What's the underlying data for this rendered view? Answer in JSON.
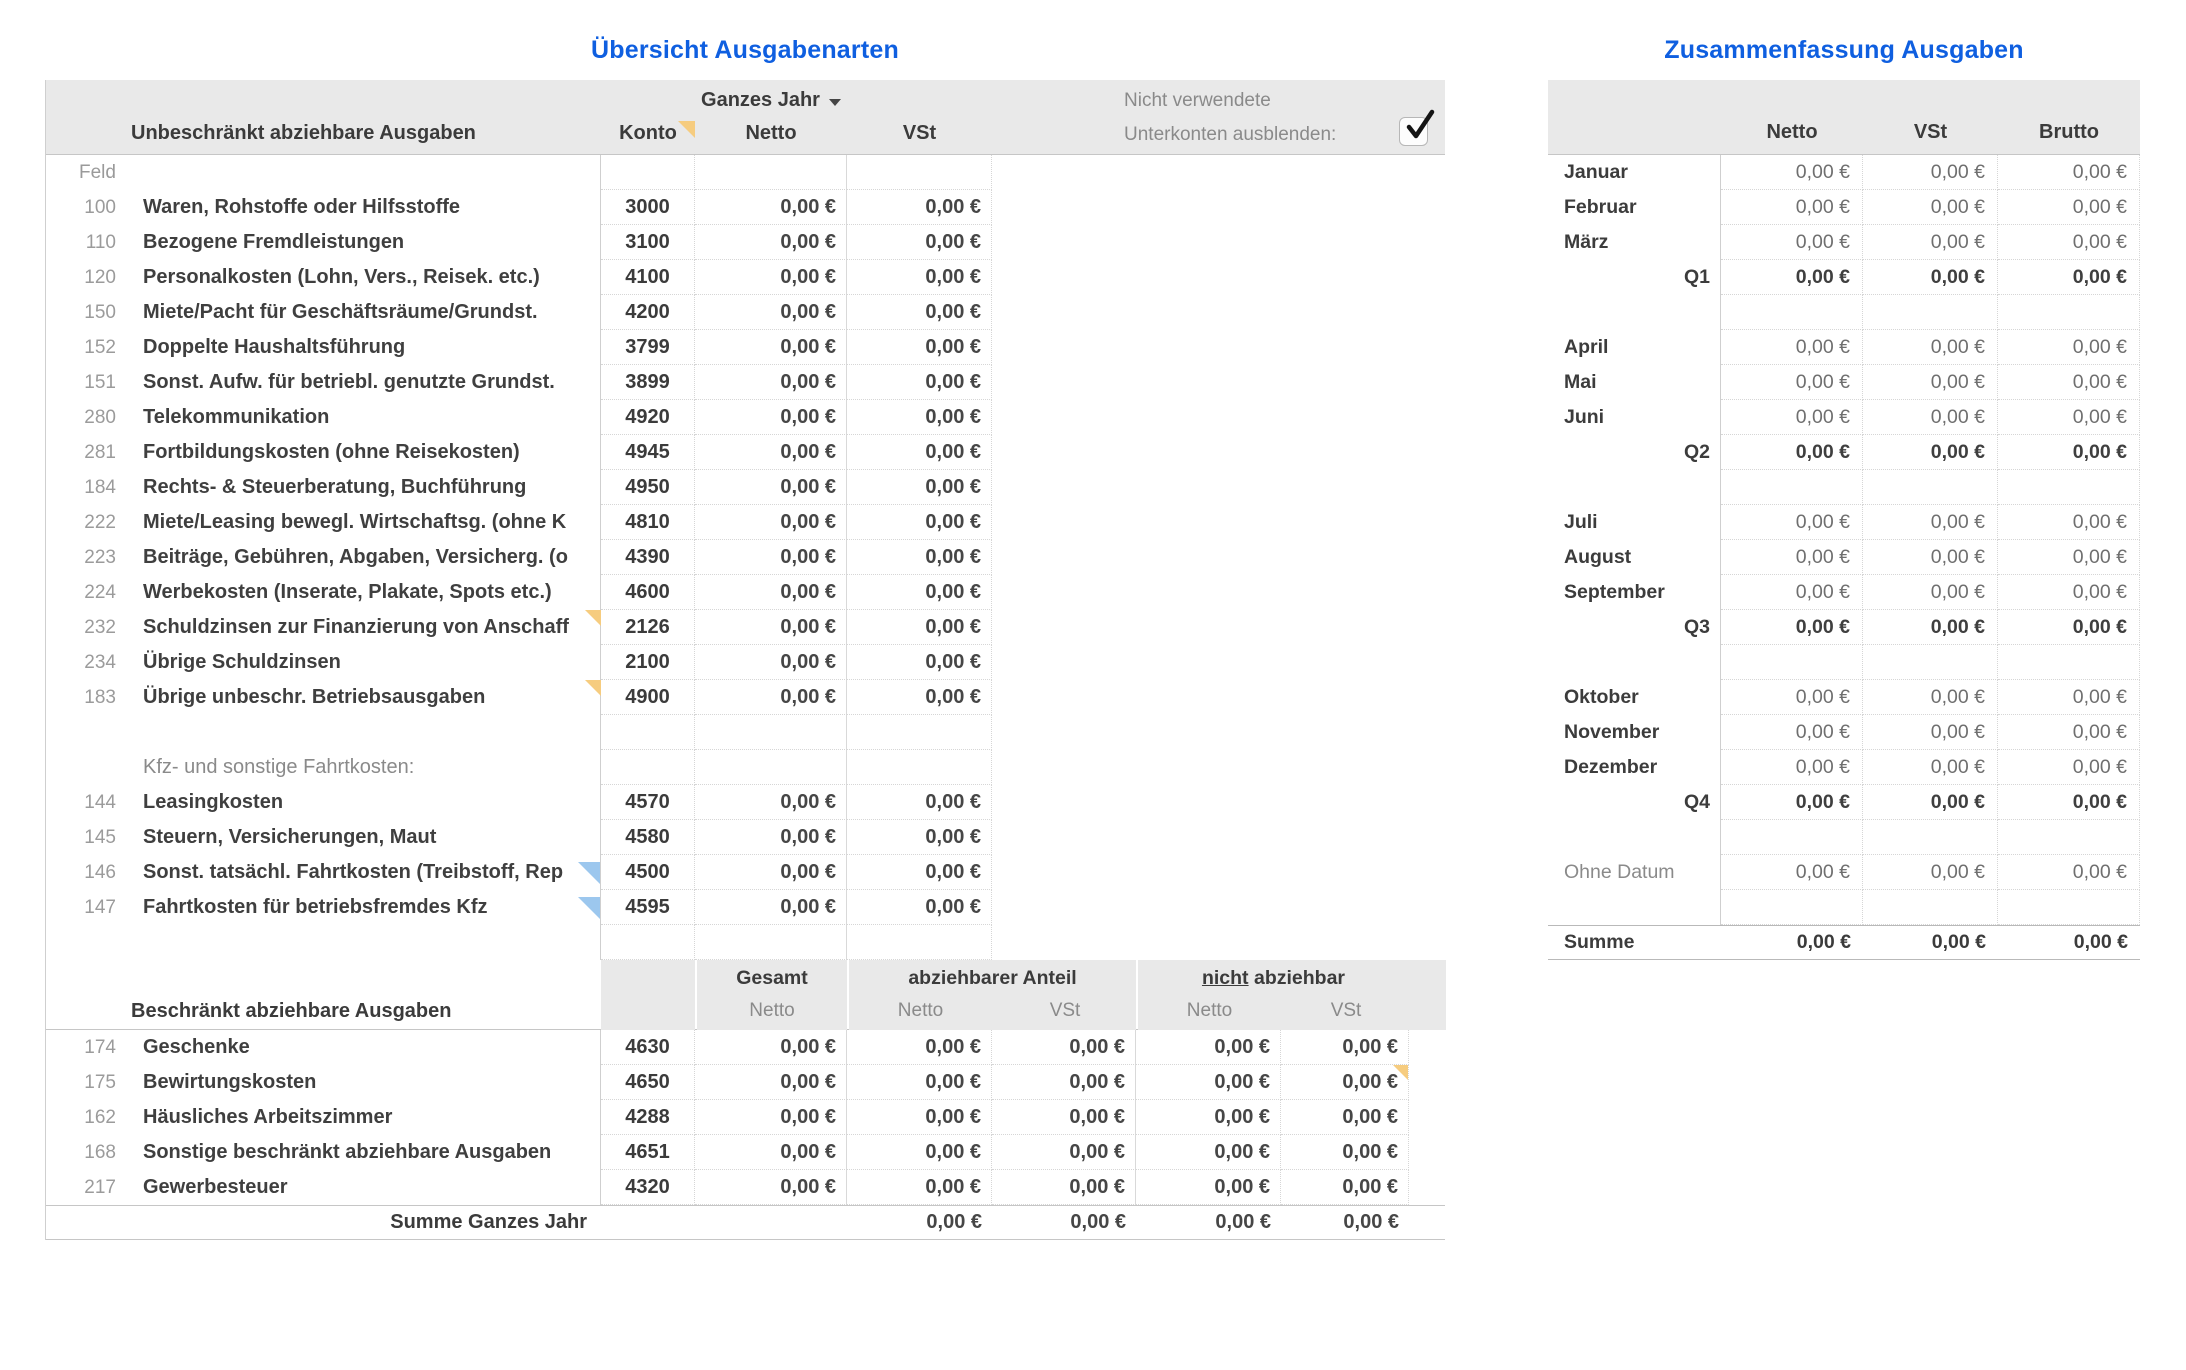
{
  "left_table": {
    "title": "Übersicht Ausgabenarten",
    "period_selector": "Ganzes Jahr",
    "unused_note_line1": "Nicht verwendete",
    "unused_note_line2": "Unterkonten ausblenden:",
    "hide_subaccounts_checked": true,
    "header": {
      "group_label": "Unbeschränkt abziehbare Ausgaben",
      "konto": "Konto",
      "netto": "Netto",
      "vst": "VSt"
    },
    "feld_label": "Feld",
    "rows": [
      {
        "feld": "100",
        "name": "Waren, Rohstoffe oder Hilfsstoffe",
        "konto": "3000",
        "netto": "0,00 €",
        "vst": "0,00 €"
      },
      {
        "feld": "110",
        "name": "Bezogene Fremdleistungen",
        "konto": "3100",
        "netto": "0,00 €",
        "vst": "0,00 €"
      },
      {
        "feld": "120",
        "name": "Personalkosten (Lohn, Vers., Reisek. etc.)",
        "konto": "4100",
        "netto": "0,00 €",
        "vst": "0,00 €"
      },
      {
        "feld": "150",
        "name": "Miete/Pacht für Geschäftsräume/Grundst.",
        "konto": "4200",
        "netto": "0,00 €",
        "vst": "0,00 €"
      },
      {
        "feld": "152",
        "name": "Doppelte Haushaltsführung",
        "konto": "3799",
        "netto": "0,00 €",
        "vst": "0,00 €"
      },
      {
        "feld": "151",
        "name": "Sonst. Aufw. für betriebl. genutzte Grundst.",
        "konto": "3899",
        "netto": "0,00 €",
        "vst": "0,00 €"
      },
      {
        "feld": "280",
        "name": "Telekommunikation",
        "konto": "4920",
        "netto": "0,00 €",
        "vst": "0,00 €"
      },
      {
        "feld": "281",
        "name": "Fortbildungskosten (ohne Reisekosten)",
        "konto": "4945",
        "netto": "0,00 €",
        "vst": "0,00 €"
      },
      {
        "feld": "184",
        "name": "Rechts- & Steuerberatung, Buchführung",
        "konto": "4950",
        "netto": "0,00 €",
        "vst": "0,00 €"
      },
      {
        "feld": "222",
        "name": "Miete/Leasing bewegl. Wirtschaftsg. (ohne K",
        "konto": "4810",
        "netto": "0,00 €",
        "vst": "0,00 €"
      },
      {
        "feld": "223",
        "name": "Beiträge, Gebühren, Abgaben, Versicherg. (o",
        "konto": "4390",
        "netto": "0,00 €",
        "vst": "0,00 €"
      },
      {
        "feld": "224",
        "name": "Werbekosten (Inserate, Plakate, Spots etc.)",
        "konto": "4600",
        "netto": "0,00 €",
        "vst": "0,00 €"
      },
      {
        "feld": "232",
        "name": "Schuldzinsen zur Finanzierung von Anschaff",
        "konto": "2126",
        "netto": "0,00 €",
        "vst": "0,00 €",
        "marker": "comment"
      },
      {
        "feld": "234",
        "name": "Übrige Schuldzinsen",
        "konto": "2100",
        "netto": "0,00 €",
        "vst": "0,00 €"
      },
      {
        "feld": "183",
        "name": "Übrige unbeschr. Betriebsausgaben",
        "konto": "4900",
        "netto": "0,00 €",
        "vst": "0,00 €",
        "marker": "comment"
      }
    ],
    "kfz_section_label": "Kfz- und sonstige Fahrtkosten:",
    "kfz_rows": [
      {
        "feld": "144",
        "name": "Leasingkosten",
        "konto": "4570",
        "netto": "0,00 €",
        "vst": "0,00 €"
      },
      {
        "feld": "145",
        "name": "Steuern, Versicherungen, Maut",
        "konto": "4580",
        "netto": "0,00 €",
        "vst": "0,00 €"
      },
      {
        "feld": "146",
        "name": "Sonst. tatsächl. Fahrtkosten (Treibstoff, Rep",
        "konto": "4500",
        "netto": "0,00 €",
        "vst": "0,00 €",
        "marker": "overflow"
      },
      {
        "feld": "147",
        "name": "Fahrtkosten für betriebsfremdes Kfz",
        "konto": "4595",
        "netto": "0,00 €",
        "vst": "0,00 €",
        "marker": "overflow"
      }
    ],
    "restricted": {
      "group_label": "Beschränkt abziehbare Ausgaben",
      "col_group_gesamt": "Gesamt",
      "col_group_abziehbar": "abziehbarer Anteil",
      "col_group_nicht_underlined": "nicht",
      "col_group_nicht_rest": "abziehbar",
      "sub_gesamt_netto": "Netto",
      "sub_abz_netto": "Netto",
      "sub_abz_vst": "VSt",
      "sub_nicht_netto": "Netto",
      "sub_nicht_vst": "VSt",
      "rows": [
        {
          "feld": "174",
          "name": "Geschenke",
          "konto": "4630",
          "values": [
            "0,00 €",
            "0,00 €",
            "0,00 €",
            "0,00 €",
            "0,00 €"
          ]
        },
        {
          "feld": "175",
          "name": "Bewirtungskosten",
          "konto": "4650",
          "values": [
            "0,00 €",
            "0,00 €",
            "0,00 €",
            "0,00 €",
            "0,00 €"
          ],
          "marker": "comment5"
        },
        {
          "feld": "162",
          "name": "Häusliches Arbeitszimmer",
          "konto": "4288",
          "values": [
            "0,00 €",
            "0,00 €",
            "0,00 €",
            "0,00 €",
            "0,00 €"
          ]
        },
        {
          "feld": "168",
          "name": "Sonstige beschränkt abziehbare Ausgaben",
          "konto": "4651",
          "values": [
            "0,00 €",
            "0,00 €",
            "0,00 €",
            "0,00 €",
            "0,00 €"
          ]
        },
        {
          "feld": "217",
          "name": "Gewerbesteuer",
          "konto": "4320",
          "values": [
            "0,00 €",
            "0,00 €",
            "0,00 €",
            "0,00 €",
            "0,00 €"
          ]
        }
      ],
      "sum_label": "Summe Ganzes Jahr",
      "sum_values": [
        "0,00 €",
        "0,00 €",
        "0,00 €",
        "0,00 €"
      ]
    }
  },
  "right_table": {
    "title": "Zusammenfassung Ausgaben",
    "headers": {
      "netto": "Netto",
      "vst": "VSt",
      "brutto": "Brutto"
    },
    "rows": [
      {
        "label": "Januar",
        "type": "month",
        "values": [
          "0,00 €",
          "0,00 €",
          "0,00 €"
        ]
      },
      {
        "label": "Februar",
        "type": "month",
        "values": [
          "0,00 €",
          "0,00 €",
          "0,00 €"
        ]
      },
      {
        "label": "März",
        "type": "month",
        "values": [
          "0,00 €",
          "0,00 €",
          "0,00 €"
        ]
      },
      {
        "label": "Q1",
        "type": "quarter",
        "values": [
          "0,00 €",
          "0,00 €",
          "0,00 €"
        ]
      },
      {
        "type": "spacer"
      },
      {
        "label": "April",
        "type": "month",
        "values": [
          "0,00 €",
          "0,00 €",
          "0,00 €"
        ]
      },
      {
        "label": "Mai",
        "type": "month",
        "values": [
          "0,00 €",
          "0,00 €",
          "0,00 €"
        ]
      },
      {
        "label": "Juni",
        "type": "month",
        "values": [
          "0,00 €",
          "0,00 €",
          "0,00 €"
        ]
      },
      {
        "label": "Q2",
        "type": "quarter",
        "values": [
          "0,00 €",
          "0,00 €",
          "0,00 €"
        ]
      },
      {
        "type": "spacer"
      },
      {
        "label": "Juli",
        "type": "month",
        "values": [
          "0,00 €",
          "0,00 €",
          "0,00 €"
        ]
      },
      {
        "label": "August",
        "type": "month",
        "values": [
          "0,00 €",
          "0,00 €",
          "0,00 €"
        ]
      },
      {
        "label": "September",
        "type": "month",
        "values": [
          "0,00 €",
          "0,00 €",
          "0,00 €"
        ]
      },
      {
        "label": "Q3",
        "type": "quarter",
        "values": [
          "0,00 €",
          "0,00 €",
          "0,00 €"
        ]
      },
      {
        "type": "spacer"
      },
      {
        "label": "Oktober",
        "type": "month",
        "values": [
          "0,00 €",
          "0,00 €",
          "0,00 €"
        ]
      },
      {
        "label": "November",
        "type": "month",
        "values": [
          "0,00 €",
          "0,00 €",
          "0,00 €"
        ]
      },
      {
        "label": "Dezember",
        "type": "month",
        "values": [
          "0,00 €",
          "0,00 €",
          "0,00 €"
        ]
      },
      {
        "label": "Q4",
        "type": "quarter",
        "values": [
          "0,00 €",
          "0,00 €",
          "0,00 €"
        ]
      },
      {
        "type": "spacer"
      },
      {
        "label": "Ohne Datum",
        "type": "nodate",
        "values": [
          "0,00 €",
          "0,00 €",
          "0,00 €"
        ]
      },
      {
        "type": "spacer"
      },
      {
        "label": "Summe",
        "type": "sum",
        "values": [
          "0,00 €",
          "0,00 €",
          "0,00 €"
        ]
      }
    ]
  },
  "colors": {
    "accent_blue": "#0f5fe0",
    "band_gray": "#e9e9e9",
    "comment_marker_yellow": "#f6cc7f",
    "overflow_marker_blue": "#9cc7ee",
    "border_solid": "#c6c6c6",
    "border_dotted": "#d6d6d6"
  }
}
